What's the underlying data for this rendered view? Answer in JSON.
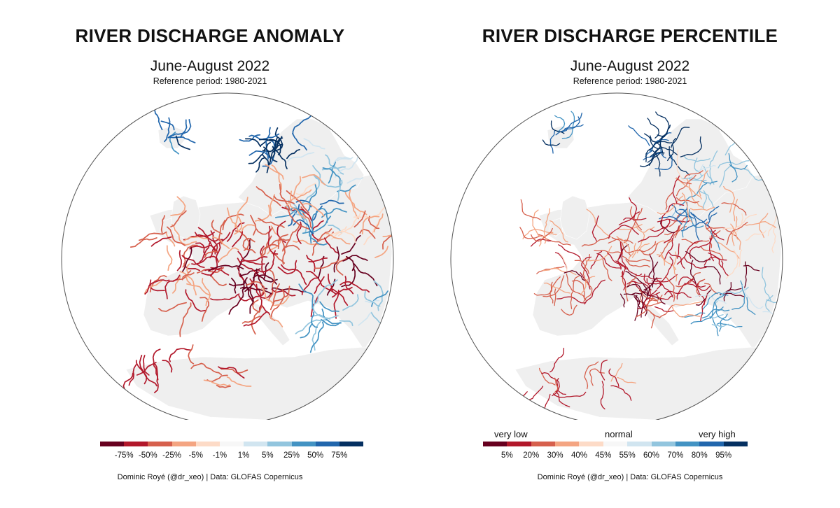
{
  "palette": [
    "#67001f",
    "#b2182b",
    "#d6604d",
    "#f4a582",
    "#fddbc7",
    "#f7f7f7",
    "#d1e5f0",
    "#92c5de",
    "#4393c3",
    "#2166ac",
    "#053061"
  ],
  "land_color": "#efefef",
  "panels": [
    {
      "title": "RIVER DISCHARGE ANOMALY",
      "subtitle": "June-August 2022",
      "reference": "Reference period: 1980-2021",
      "legend_low": "",
      "legend_mid": "",
      "legend_high": "",
      "ticks": [
        "-75%",
        "-50%",
        "-25%",
        "-5%",
        "-1%",
        "1%",
        "5%",
        "25%",
        "50%",
        "75%"
      ],
      "credit": "Dominic Royé (@dr_xeo) | Data: GLOFAS Copernicus"
    },
    {
      "title": "RIVER DISCHARGE PERCENTILE",
      "subtitle": "June-August 2022",
      "reference": "Reference period: 1980-2021",
      "legend_low": "very low",
      "legend_mid": "normal",
      "legend_high": "very high",
      "ticks": [
        "5%",
        "20%",
        "30%",
        "40%",
        "45%",
        "55%",
        "60%",
        "70%",
        "80%",
        "95%"
      ],
      "credit": "Dominic Royé (@dr_xeo) | Data: GLOFAS Copernicus"
    }
  ]
}
